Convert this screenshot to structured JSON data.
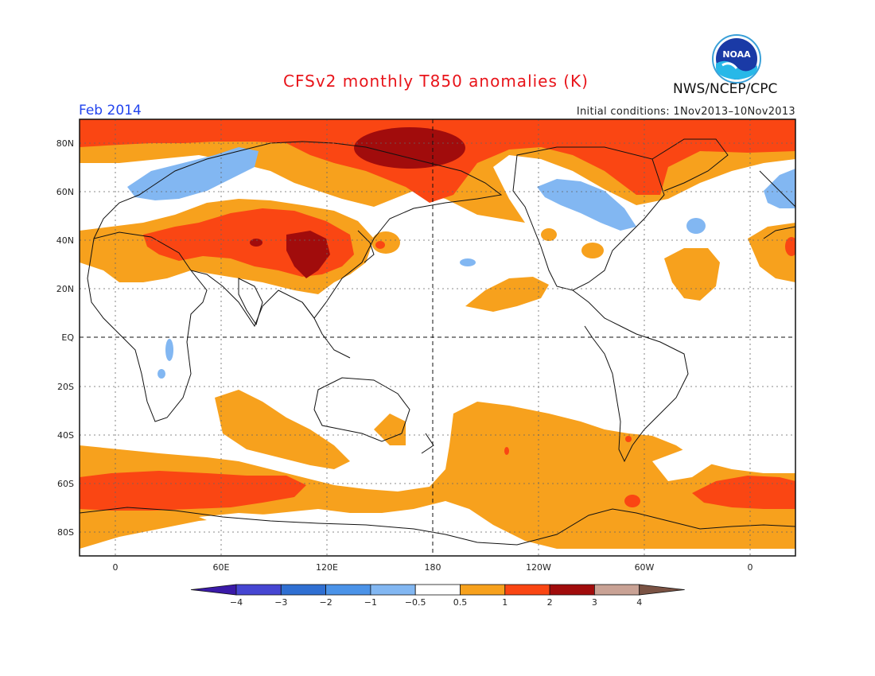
{
  "header": {
    "title": "CFSv2 monthly T850 anomalies (K)",
    "period": "Feb 2014",
    "initial_conditions": "Initial conditions: 1Nov2013–10Nov2013",
    "agency": "NWS/NCEP/CPC",
    "logo_text": "NOAA"
  },
  "axes": {
    "lat_labels": [
      "80N",
      "60N",
      "40N",
      "20N",
      "EQ",
      "20S",
      "40S",
      "60S",
      "80S"
    ],
    "lon_labels": [
      "0",
      "60E",
      "120E",
      "180",
      "120W",
      "60W",
      "0"
    ]
  },
  "colorbar": {
    "labels": [
      "−4",
      "−3",
      "−2",
      "−1",
      "−0.5",
      "0.5",
      "1",
      "2",
      "3",
      "4"
    ],
    "colors": [
      "#3a1aa8",
      "#4646d2",
      "#2f6fd2",
      "#4b93e8",
      "#82b7f2",
      "#ffffff",
      "#f7a11d",
      "#fa4613",
      "#a10c0c",
      "#c9a295",
      "#7a5243"
    ]
  },
  "colors": {
    "title": "#e8141a",
    "period": "#2244ee",
    "orange": "#f7a11d",
    "red": "#fa4613",
    "darkred": "#a10c0c",
    "lightblue": "#82b7f2"
  }
}
